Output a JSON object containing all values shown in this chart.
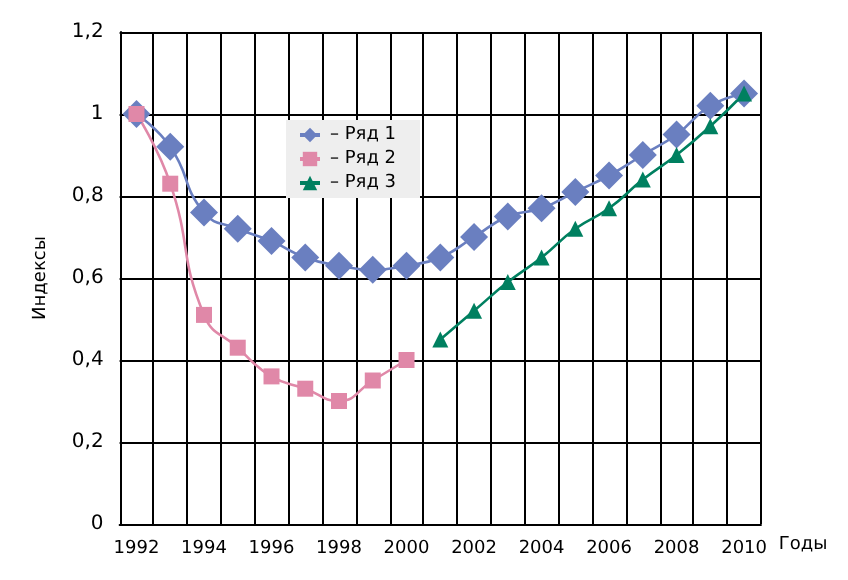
{
  "chart_data": {
    "type": "line",
    "ylabel": "Индексы",
    "xlabel": "Годы",
    "categories": [
      "1992",
      null,
      "1994",
      null,
      "1996",
      null,
      "1998",
      null,
      "2000",
      null,
      "2002",
      null,
      "2004",
      null,
      "2006",
      null,
      "2008",
      null,
      "2010"
    ],
    "series": [
      {
        "name": "– Ряд 1",
        "color": "#6a7fc0",
        "marker": "diamond",
        "values": [
          1.0,
          0.92,
          0.76,
          0.72,
          0.69,
          0.65,
          0.63,
          0.62,
          0.63,
          0.65,
          0.7,
          0.75,
          0.77,
          0.81,
          0.85,
          0.9,
          0.95,
          1.02,
          1.05
        ]
      },
      {
        "name": "– Ряд 2",
        "color": "#e088a8",
        "marker": "square",
        "values": [
          1.0,
          0.83,
          0.51,
          0.43,
          0.36,
          0.33,
          0.3,
          0.35,
          0.4,
          null,
          null,
          null,
          null,
          null,
          null,
          null,
          null,
          null,
          null
        ]
      },
      {
        "name": "– Ряд 3",
        "color": "#008060",
        "marker": "triangle",
        "values": [
          null,
          null,
          null,
          null,
          null,
          null,
          null,
          null,
          null,
          0.45,
          0.52,
          0.59,
          0.65,
          0.72,
          0.77,
          0.84,
          0.9,
          0.97,
          1.05
        ]
      }
    ],
    "ylim": [
      0,
      1.2
    ],
    "yticks": [
      0,
      {
        "value": 0.2,
        "label": "0,2"
      },
      {
        "value": 0.4,
        "label": "0,4"
      },
      {
        "value": 0.6,
        "label": "0,6"
      },
      {
        "value": 0.8,
        "label": "0,8"
      },
      1,
      {
        "value": 1.2,
        "label": "1,2"
      }
    ],
    "grid": true,
    "legend": "top left"
  }
}
